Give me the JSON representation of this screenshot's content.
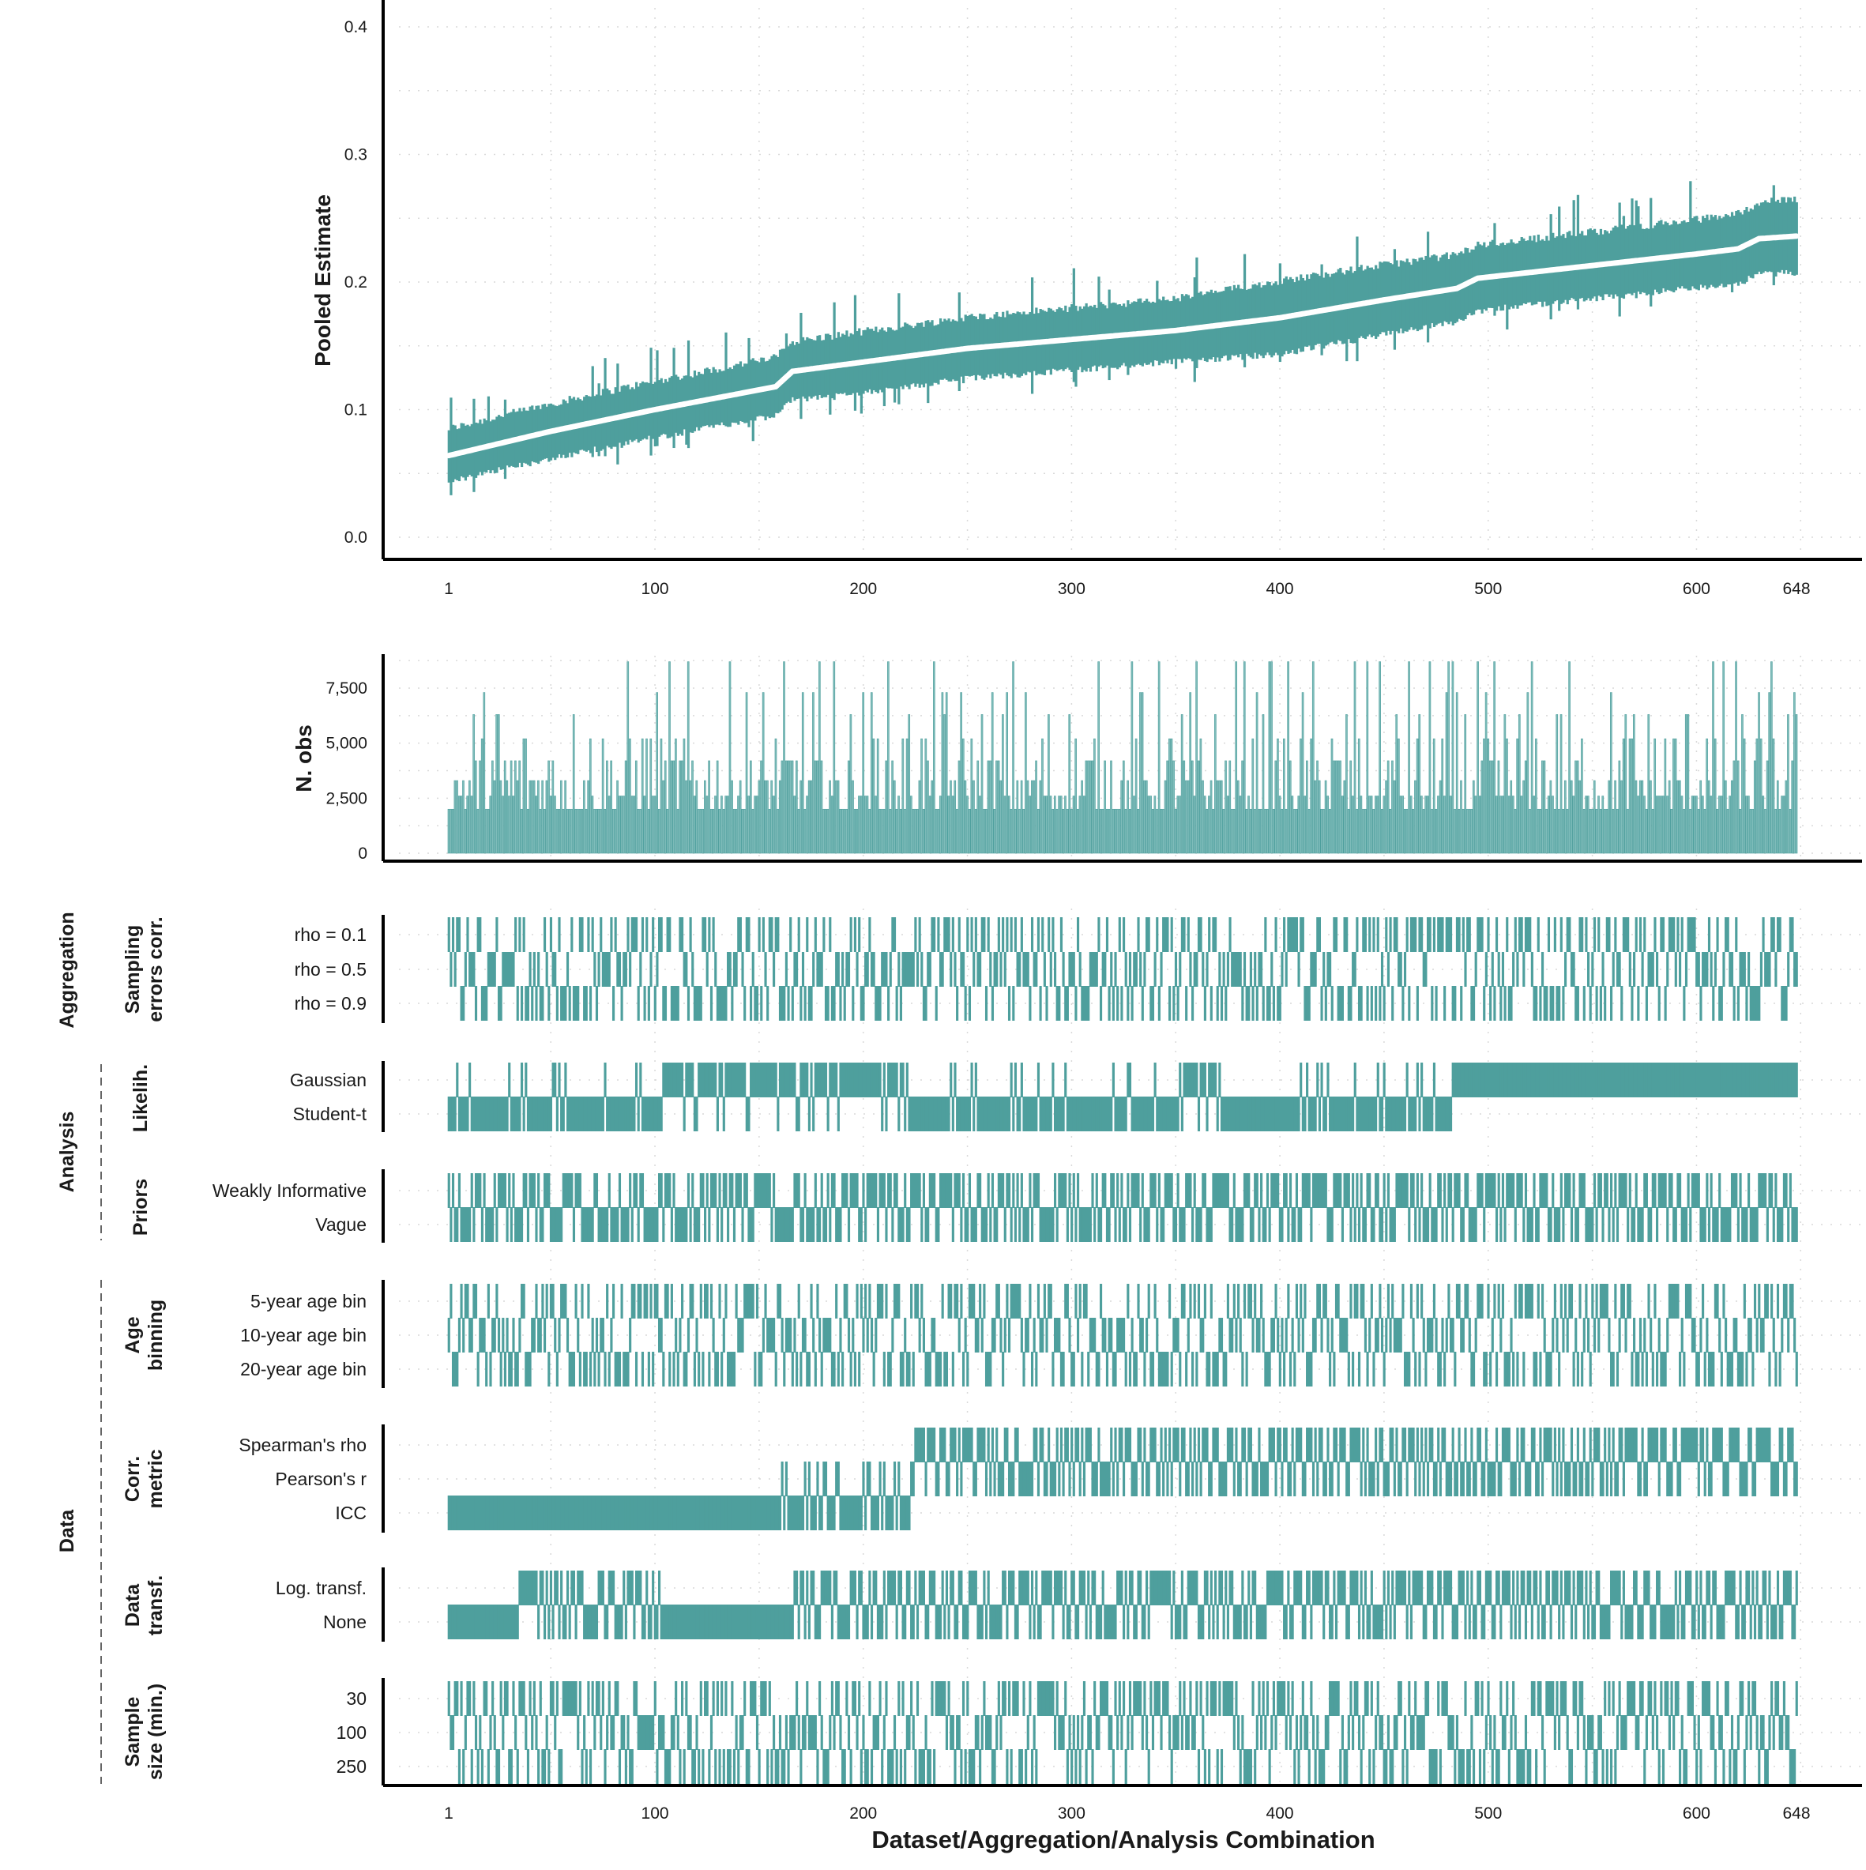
{
  "colors": {
    "teal": "#4e9f9d",
    "teal_light": "#7fbcba",
    "axis": "#000000",
    "grid": "#d9d9d9"
  },
  "chart_data": [
    {
      "type": "line",
      "chart": "pooled-estimate",
      "ylabel": "Pooled Estimate",
      "ylim": [
        0,
        0.42
      ],
      "yticks": [
        0.0,
        0.1,
        0.2,
        0.3,
        0.4
      ],
      "ytick_labels": [
        "0.0",
        "0.1",
        "0.2",
        "0.3",
        "0.4"
      ],
      "x_range": [
        1,
        648
      ],
      "xticks": [
        1,
        100,
        200,
        300,
        400,
        500,
        600,
        648
      ],
      "xtick_labels": [
        "1",
        "100",
        "200",
        "300",
        "400",
        "500",
        "600",
        "648"
      ],
      "estimate_curve": {
        "x": [
          1,
          50,
          100,
          158,
          166,
          250,
          350,
          400,
          450,
          485,
          495,
          600,
          620,
          630,
          648
        ],
        "y": [
          0.064,
          0.083,
          0.1,
          0.118,
          0.13,
          0.148,
          0.162,
          0.172,
          0.186,
          0.195,
          0.203,
          0.222,
          0.226,
          0.234,
          0.236
        ]
      },
      "interval_halfwidth": {
        "x": [
          1,
          150,
          200,
          350,
          400,
          500,
          600,
          648
        ],
        "y": [
          0.018,
          0.02,
          0.021,
          0.022,
          0.026,
          0.023,
          0.024,
          0.026
        ]
      },
      "grid": true
    },
    {
      "type": "bar",
      "chart": "n-obs",
      "ylabel": "N. obs",
      "ylim": [
        0,
        8800
      ],
      "yticks": [
        0,
        2500,
        5000,
        7500
      ],
      "ytick_labels": [
        "0",
        "2,500",
        "5,000",
        "7,500"
      ],
      "x_range": [
        1,
        648
      ],
      "bar_levels": [
        2000,
        2600,
        3300,
        4200,
        5200,
        6300,
        7300,
        8700
      ],
      "grid": true
    },
    {
      "type": "heatmap",
      "chart": "specification-indicators",
      "xlabel": "Dataset/Aggregation/Analysis Combination",
      "x_range": [
        1,
        648
      ],
      "xticks": [
        1,
        100,
        200,
        300,
        400,
        500,
        600,
        648
      ],
      "xtick_labels": [
        "1",
        "100",
        "200",
        "300",
        "400",
        "500",
        "600",
        "648"
      ],
      "groups": [
        {
          "label": "Aggregation",
          "rows": [
            {
              "title": "Sampling\nerrors corr.",
              "levels": [
                "rho = 0.1",
                "rho = 0.5",
                "rho = 0.9"
              ]
            }
          ]
        },
        {
          "label": "Analysis",
          "rows": [
            {
              "title": "Likelih.",
              "levels": [
                "Gaussian",
                "Student-t"
              ]
            },
            {
              "title": "Priors",
              "levels": [
                "Weakly Informative",
                "Vague"
              ]
            }
          ]
        },
        {
          "label": "Data",
          "rows": [
            {
              "title": "Age\nbinning",
              "levels": [
                "5-year age bin",
                "10-year age bin",
                "20-year age bin"
              ]
            },
            {
              "title": "Corr.\nmetric",
              "levels": [
                "Spearman's rho",
                "Pearson's r",
                "ICC"
              ]
            },
            {
              "title": "Data\ntransf.",
              "levels": [
                "Log. transf.",
                "None"
              ]
            },
            {
              "title": "Sample\nsize (min.)",
              "levels": [
                "30",
                "100",
                "250"
              ]
            }
          ]
        }
      ],
      "grid": true
    }
  ]
}
